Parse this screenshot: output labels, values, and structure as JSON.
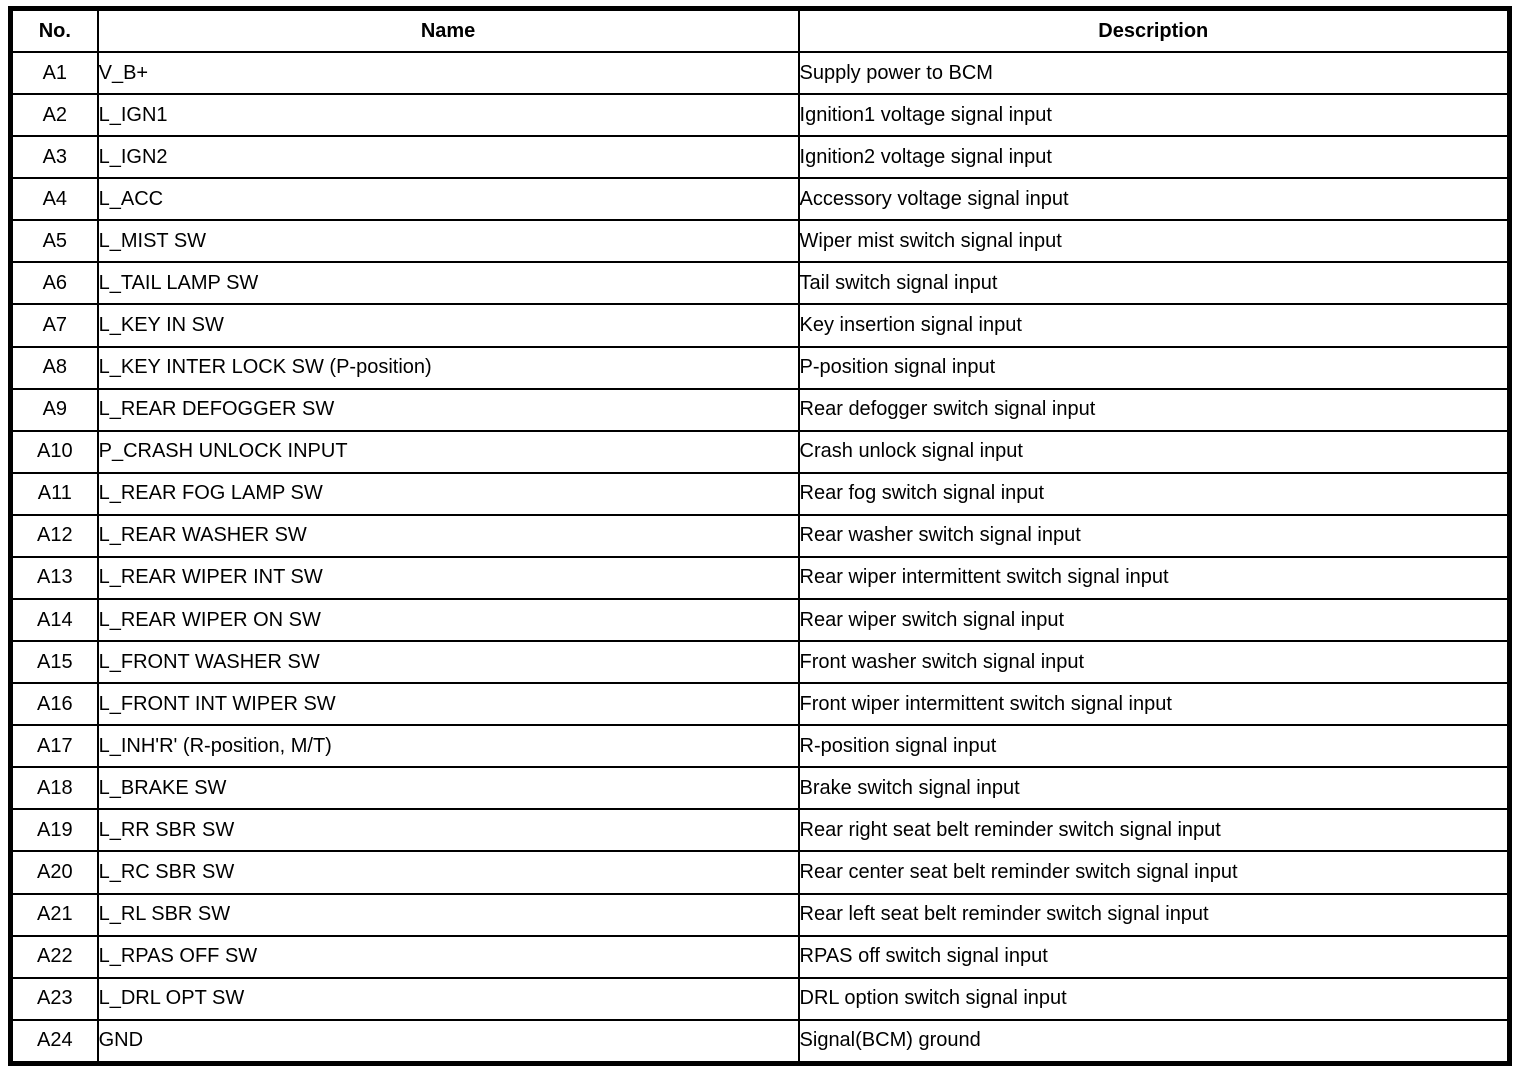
{
  "table": {
    "columns": [
      "No.",
      "Name",
      "Description"
    ],
    "rows": [
      {
        "no": "A1",
        "name": "V_B+",
        "description": "Supply power to BCM"
      },
      {
        "no": "A2",
        "name": "L_IGN1",
        "description": "Ignition1 voltage signal input"
      },
      {
        "no": "A3",
        "name": "L_IGN2",
        "description": "Ignition2 voltage signal input"
      },
      {
        "no": "A4",
        "name": "L_ACC",
        "description": "Accessory voltage signal input"
      },
      {
        "no": "A5",
        "name": "L_MIST SW",
        "description": "Wiper mist switch signal input"
      },
      {
        "no": "A6",
        "name": "L_TAIL LAMP SW",
        "description": "Tail switch signal input"
      },
      {
        "no": "A7",
        "name": "L_KEY IN SW",
        "description": "Key insertion signal input"
      },
      {
        "no": "A8",
        "name": "L_KEY INTER LOCK SW (P-position)",
        "description": "P-position signal input"
      },
      {
        "no": "A9",
        "name": "L_REAR DEFOGGER SW",
        "description": "Rear defogger switch signal input"
      },
      {
        "no": "A10",
        "name": "P_CRASH UNLOCK INPUT",
        "description": "Crash unlock signal input"
      },
      {
        "no": "A11",
        "name": "L_REAR FOG LAMP SW",
        "description": "Rear fog switch signal input"
      },
      {
        "no": "A12",
        "name": "L_REAR WASHER SW",
        "description": "Rear washer switch signal input"
      },
      {
        "no": "A13",
        "name": "L_REAR WIPER INT SW",
        "description": "Rear wiper intermittent switch signal input"
      },
      {
        "no": "A14",
        "name": "L_REAR WIPER ON SW",
        "description": "Rear wiper switch signal input"
      },
      {
        "no": "A15",
        "name": "L_FRONT WASHER SW",
        "description": "Front washer switch signal input"
      },
      {
        "no": "A16",
        "name": "L_FRONT INT WIPER SW",
        "description": "Front wiper intermittent switch signal input"
      },
      {
        "no": "A17",
        "name": "L_INH'R' (R-position, M/T)",
        "description": "R-position signal input"
      },
      {
        "no": "A18",
        "name": "L_BRAKE SW",
        "description": "Brake switch signal input"
      },
      {
        "no": "A19",
        "name": "L_RR SBR SW",
        "description": "Rear right seat belt reminder switch signal input"
      },
      {
        "no": "A20",
        "name": "L_RC SBR SW",
        "description": "Rear center seat belt reminder switch signal input"
      },
      {
        "no": "A21",
        "name": "L_RL SBR SW",
        "description": "Rear left seat belt reminder switch signal input"
      },
      {
        "no": "A22",
        "name": "L_RPAS OFF SW",
        "description": "RPAS off switch signal input"
      },
      {
        "no": "A23",
        "name": "L_DRL OPT SW",
        "description": "DRL option switch signal input"
      },
      {
        "no": "A24",
        "name": "GND",
        "description": "Signal(BCM) ground"
      }
    ]
  }
}
